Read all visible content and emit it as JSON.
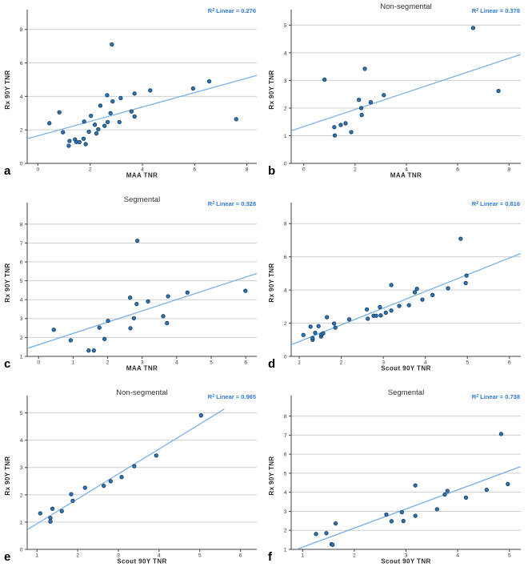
{
  "styles": {
    "background": "#ffffff",
    "grid_color": "#cfcfcf",
    "axis_color": "#424242",
    "dot_fill": "#2e76b8",
    "dot_stroke": "#173f63",
    "line_color": "#79b1ea",
    "r2_color": "#2f7bdd",
    "text_color": "#333333"
  },
  "chart_data": [
    {
      "id": "a",
      "type": "scatter",
      "panel_letter": "a",
      "title": "",
      "r2_label": "R² Linear = 0.276",
      "r2_value": 0.276,
      "xlabel": "MAA TNR",
      "ylabel": "Rx 90Y TNR",
      "x_ticks": [
        0,
        2,
        4,
        6,
        8
      ],
      "y_ticks": [
        0,
        2,
        4,
        6,
        8
      ],
      "xlim": [
        -0.41,
        8.38
      ],
      "ylim": [
        0,
        8.8
      ],
      "grid": "horizontal",
      "points": [
        [
          0.44,
          2.4
        ],
        [
          0.82,
          3.05
        ],
        [
          0.96,
          1.86
        ],
        [
          1.18,
          1.05
        ],
        [
          1.21,
          1.34
        ],
        [
          1.42,
          1.43
        ],
        [
          1.47,
          1.28
        ],
        [
          1.59,
          1.27
        ],
        [
          1.75,
          1.47
        ],
        [
          1.77,
          2.5
        ],
        [
          1.83,
          1.15
        ],
        [
          1.95,
          1.89
        ],
        [
          2.03,
          2.84
        ],
        [
          2.18,
          2.31
        ],
        [
          2.24,
          1.79
        ],
        [
          2.31,
          2.04
        ],
        [
          2.39,
          3.45
        ],
        [
          2.55,
          2.24
        ],
        [
          2.65,
          4.07
        ],
        [
          2.67,
          2.47
        ],
        [
          2.78,
          3.0
        ],
        [
          2.83,
          7.1
        ],
        [
          2.86,
          3.7
        ],
        [
          3.12,
          2.47
        ],
        [
          3.17,
          3.9
        ],
        [
          3.58,
          3.1
        ],
        [
          3.7,
          4.17
        ],
        [
          3.7,
          2.8
        ],
        [
          4.3,
          4.36
        ],
        [
          5.94,
          4.47
        ],
        [
          6.56,
          4.9
        ],
        [
          7.59,
          2.64
        ]
      ],
      "regression_line": {
        "x1": -0.41,
        "y1": 1.47,
        "x2": 8.38,
        "y2": 5.25
      }
    },
    {
      "id": "b",
      "type": "scatter",
      "panel_letter": "b",
      "title": "Non-segmental",
      "r2_label": "R² Linear = 0.378",
      "r2_value": 0.378,
      "xlabel": "MAA TNR",
      "ylabel": "Rx 90Y TNR",
      "x_ticks": [
        0,
        2,
        4,
        6,
        8
      ],
      "y_ticks": [
        0,
        1,
        2,
        3,
        4,
        5
      ],
      "xlim": [
        -0.49,
        8.46
      ],
      "ylim": [
        0,
        5.33
      ],
      "grid": "horizontal",
      "points": [
        [
          0.81,
          3.03
        ],
        [
          1.19,
          1.31
        ],
        [
          1.21,
          1.01
        ],
        [
          1.44,
          1.39
        ],
        [
          1.63,
          1.45
        ],
        [
          1.85,
          1.13
        ],
        [
          2.15,
          2.3
        ],
        [
          2.24,
          2.0
        ],
        [
          2.26,
          1.75
        ],
        [
          2.38,
          3.42
        ],
        [
          2.61,
          2.21
        ],
        [
          3.12,
          2.47
        ],
        [
          6.6,
          4.9
        ],
        [
          7.59,
          2.62
        ]
      ],
      "regression_line": {
        "x1": -0.49,
        "y1": 1.18,
        "x2": 8.46,
        "y2": 3.94
      }
    },
    {
      "id": "c",
      "type": "scatter",
      "panel_letter": "c",
      "title": "Segmental",
      "r2_label": "R² Linear = 0.328",
      "r2_value": 0.328,
      "xlabel": "MAA TNR",
      "ylabel": "Rx 90Y TNR",
      "x_ticks": [
        0,
        1,
        2,
        3,
        4,
        5,
        6
      ],
      "y_ticks": [
        1,
        2,
        3,
        4,
        5,
        6,
        7,
        8
      ],
      "xlim": [
        -0.33,
        6.32
      ],
      "ylim": [
        1,
        8.8
      ],
      "grid": "horizontal",
      "points": [
        [
          0.44,
          2.41
        ],
        [
          0.93,
          1.85
        ],
        [
          1.45,
          1.31
        ],
        [
          1.6,
          1.31
        ],
        [
          1.76,
          2.52
        ],
        [
          1.91,
          1.92
        ],
        [
          2.01,
          2.88
        ],
        [
          2.65,
          4.11
        ],
        [
          2.66,
          2.49
        ],
        [
          2.76,
          3.02
        ],
        [
          2.84,
          3.77
        ],
        [
          2.86,
          7.12
        ],
        [
          3.17,
          3.91
        ],
        [
          3.61,
          3.13
        ],
        [
          3.72,
          2.76
        ],
        [
          3.75,
          4.18
        ],
        [
          4.31,
          4.38
        ],
        [
          5.99,
          4.47
        ]
      ],
      "regression_line": {
        "x1": -0.33,
        "y1": 1.42,
        "x2": 6.32,
        "y2": 5.39
      }
    },
    {
      "id": "d",
      "type": "scatter",
      "panel_letter": "d",
      "title": "",
      "r2_label": "R² Linear = 0.816",
      "r2_value": 0.816,
      "xlabel": "Scout 90Y TNR",
      "ylabel": "Rx 90Y TNR",
      "x_ticks": [
        1,
        2,
        3,
        4,
        5,
        6
      ],
      "y_ticks": [
        0,
        2,
        4,
        6,
        8
      ],
      "xlim": [
        0.81,
        6.27
      ],
      "ylim": [
        0,
        8.88
      ],
      "grid": "horizontal",
      "points": [
        [
          1.1,
          1.29
        ],
        [
          1.27,
          1.79
        ],
        [
          1.32,
          1.0
        ],
        [
          1.32,
          1.1
        ],
        [
          1.38,
          1.42
        ],
        [
          1.46,
          1.82
        ],
        [
          1.52,
          1.2
        ],
        [
          1.53,
          1.32
        ],
        [
          1.57,
          1.39
        ],
        [
          1.66,
          2.36
        ],
        [
          1.83,
          1.98
        ],
        [
          1.86,
          1.73
        ],
        [
          2.19,
          2.23
        ],
        [
          2.61,
          2.83
        ],
        [
          2.63,
          2.27
        ],
        [
          2.77,
          2.45
        ],
        [
          2.83,
          2.45
        ],
        [
          2.92,
          2.97
        ],
        [
          2.94,
          2.47
        ],
        [
          3.06,
          2.63
        ],
        [
          3.19,
          2.76
        ],
        [
          3.19,
          4.3
        ],
        [
          3.38,
          3.04
        ],
        [
          3.61,
          3.08
        ],
        [
          3.75,
          3.86
        ],
        [
          3.8,
          4.07
        ],
        [
          3.93,
          3.42
        ],
        [
          4.17,
          3.7
        ],
        [
          4.54,
          4.1
        ],
        [
          4.84,
          7.09
        ],
        [
          4.96,
          4.42
        ],
        [
          4.98,
          4.87
        ]
      ],
      "regression_line": {
        "x1": 0.81,
        "y1": 0.7,
        "x2": 6.27,
        "y2": 6.2
      }
    },
    {
      "id": "e",
      "type": "scatter",
      "panel_letter": "e",
      "title": "Non-segmental",
      "r2_label": "R² Linear = 0.965",
      "r2_value": 0.965,
      "xlabel": "Scout 90Y TNR",
      "ylabel": "Rx 90Y TNR",
      "x_ticks": [
        1,
        2,
        3,
        4,
        5,
        6
      ],
      "y_ticks": [
        0,
        1,
        2,
        3,
        4,
        5
      ],
      "xlim": [
        0.76,
        6.4
      ],
      "ylim": [
        0,
        5.4
      ],
      "grid": "horizontal",
      "points": [
        [
          1.08,
          1.32
        ],
        [
          1.33,
          1.15
        ],
        [
          1.33,
          1.02
        ],
        [
          1.38,
          1.49
        ],
        [
          1.61,
          1.4
        ],
        [
          1.84,
          2.02
        ],
        [
          1.88,
          1.78
        ],
        [
          2.18,
          2.26
        ],
        [
          2.64,
          2.33
        ],
        [
          2.81,
          2.5
        ],
        [
          3.08,
          2.65
        ],
        [
          3.39,
          3.05
        ],
        [
          3.93,
          3.44
        ],
        [
          5.03,
          4.91
        ]
      ],
      "regression_line": {
        "x1": 0.76,
        "y1": 0.72,
        "x2": 5.6,
        "y2": 5.14
      }
    },
    {
      "id": "f",
      "type": "scatter",
      "panel_letter": "f",
      "title": "Segmental",
      "r2_label": "R² Linear = 0.738",
      "r2_value": 0.738,
      "xlabel": "Scout 90Y TNR",
      "ylabel": "Rx 90Y TNR",
      "x_ticks": [
        1,
        2,
        3,
        4,
        5
      ],
      "y_ticks": [
        1,
        2,
        3,
        4,
        5,
        6,
        7,
        8
      ],
      "xlim": [
        0.78,
        5.22
      ],
      "ylim": [
        1,
        8.74
      ],
      "grid": "horizontal",
      "points": [
        [
          1.26,
          1.81
        ],
        [
          1.46,
          1.85
        ],
        [
          1.56,
          1.27
        ],
        [
          1.58,
          1.24
        ],
        [
          1.64,
          2.36
        ],
        [
          2.62,
          2.83
        ],
        [
          2.72,
          2.48
        ],
        [
          2.92,
          2.95
        ],
        [
          2.95,
          2.49
        ],
        [
          3.18,
          4.36
        ],
        [
          3.18,
          2.76
        ],
        [
          3.6,
          3.11
        ],
        [
          3.75,
          3.88
        ],
        [
          3.8,
          4.07
        ],
        [
          4.16,
          3.72
        ],
        [
          4.56,
          4.13
        ],
        [
          4.84,
          7.06
        ],
        [
          4.97,
          4.43
        ]
      ],
      "regression_line": {
        "x1": 0.886,
        "y1": 1.0,
        "x2": 5.22,
        "y2": 5.35
      }
    }
  ]
}
